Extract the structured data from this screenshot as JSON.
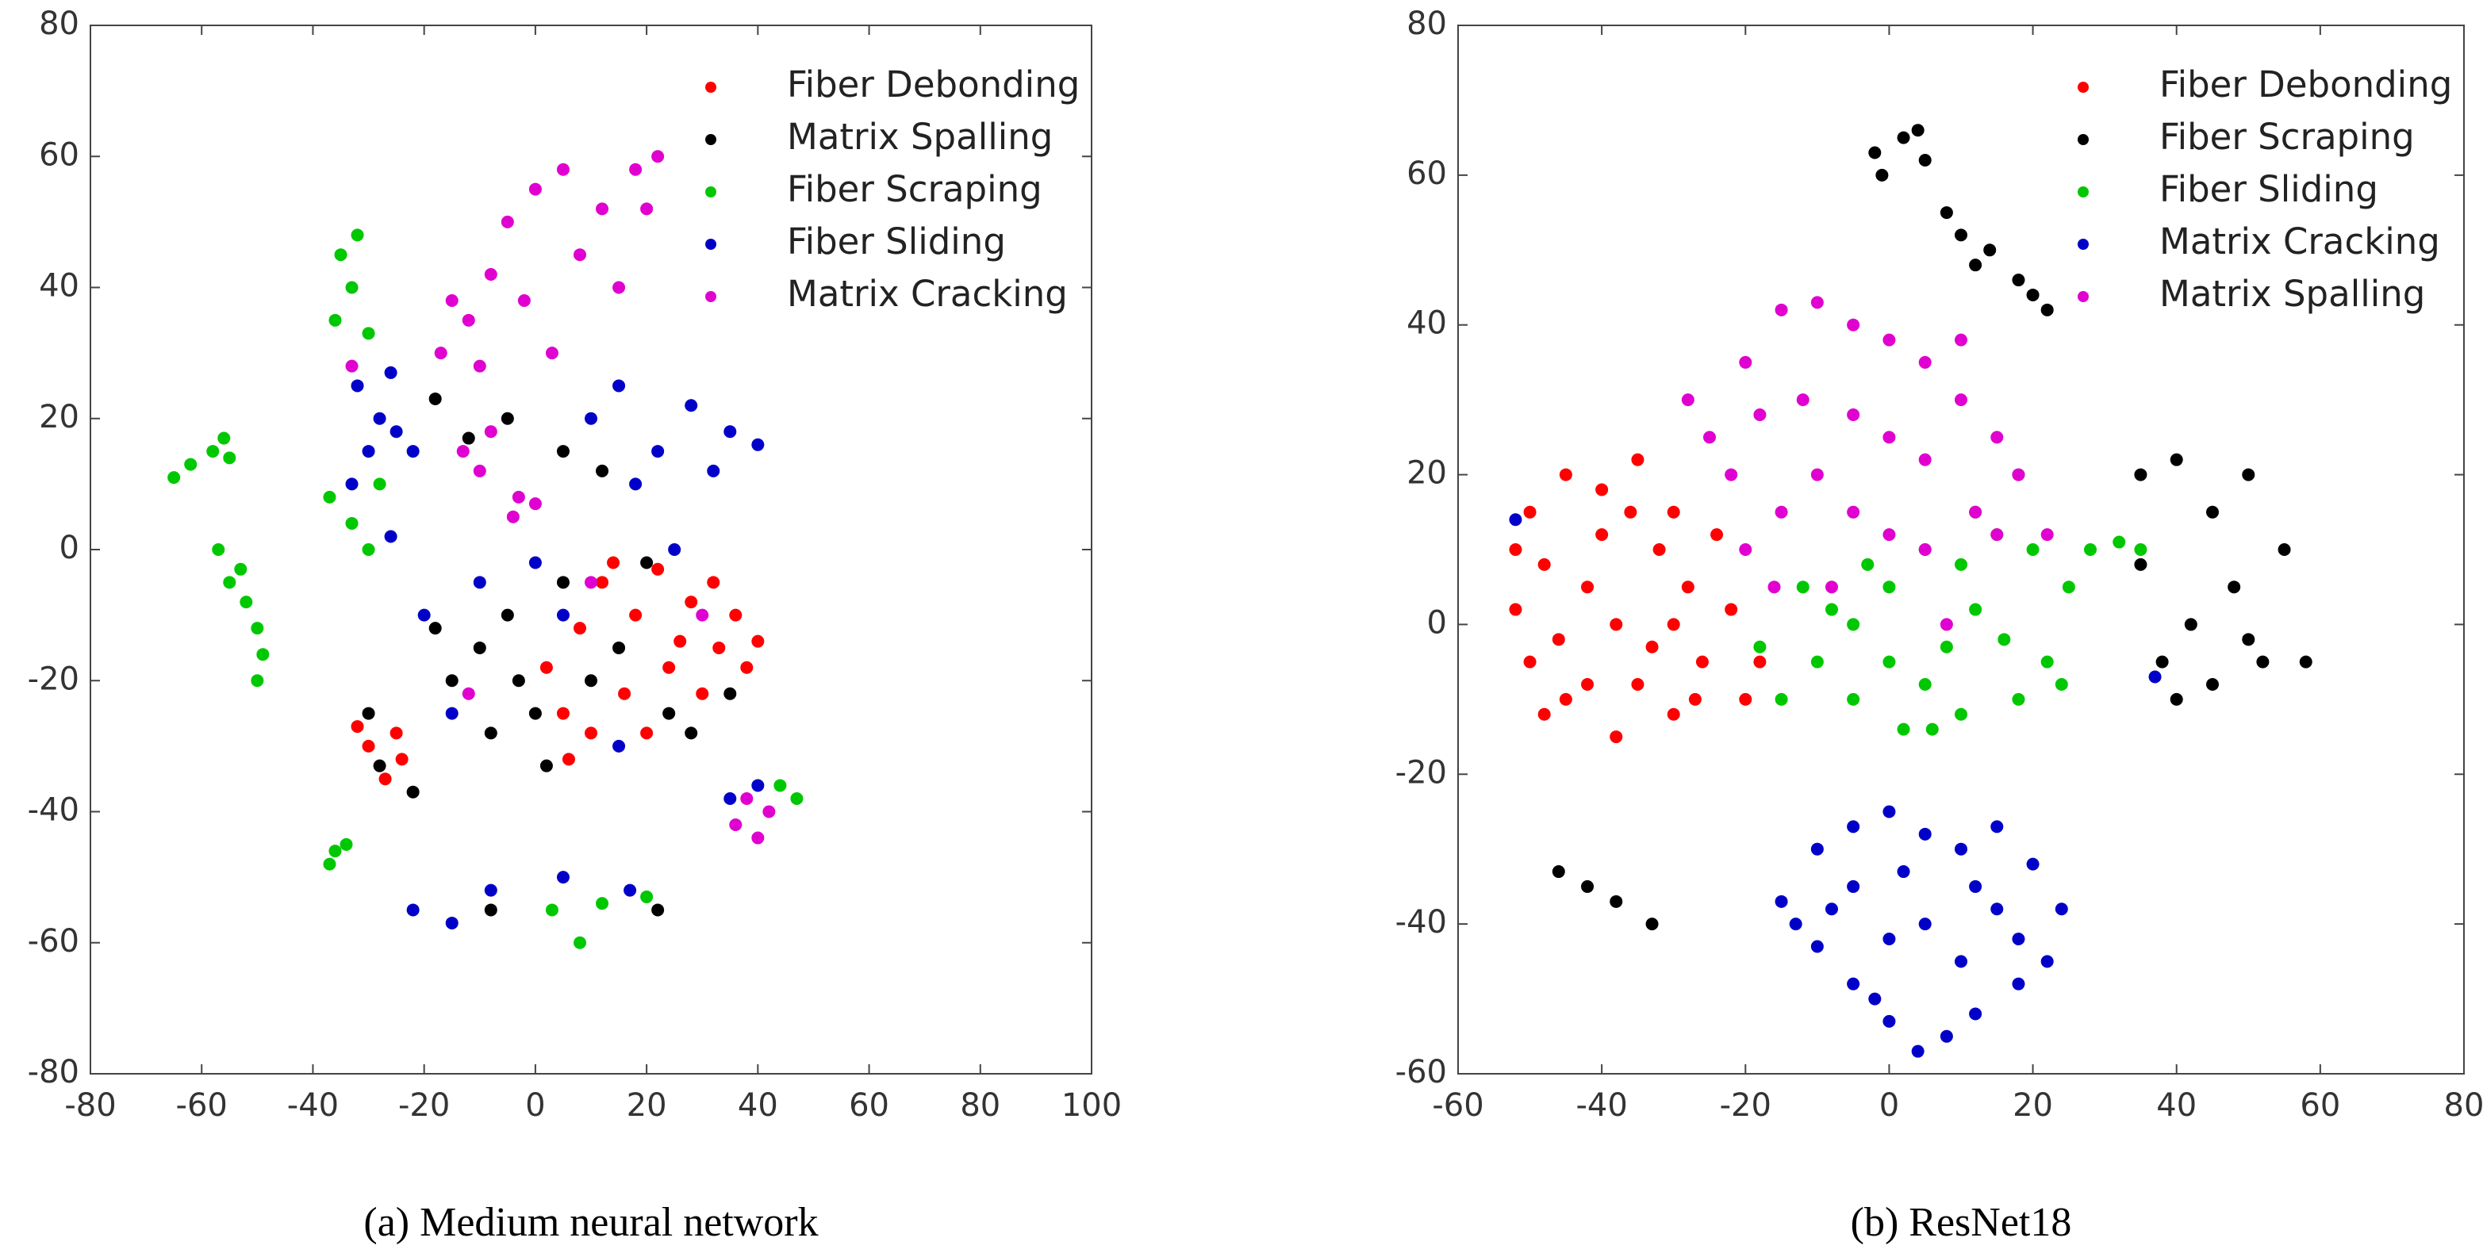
{
  "chart_data": [
    {
      "type": "scatter",
      "caption": "(a) Medium neural network",
      "legend": "upper right",
      "xlim": [
        -80,
        100
      ],
      "ylim": [
        -80,
        80
      ],
      "xticks": [
        -80,
        -60,
        -40,
        -20,
        0,
        20,
        40,
        60,
        80,
        100
      ],
      "yticks": [
        -80,
        -60,
        -40,
        -20,
        0,
        20,
        40,
        60,
        80
      ],
      "series": [
        {
          "name": "Fiber Debonding",
          "color": "#ff0000",
          "x": [
            12,
            18,
            22,
            28,
            33,
            38,
            36,
            30,
            24,
            16,
            10,
            5,
            2,
            8,
            20,
            26,
            32,
            40,
            14,
            6,
            -30,
            -27,
            -24,
            -32,
            -25
          ],
          "values": [
            -5,
            -10,
            -3,
            -8,
            -15,
            -18,
            -10,
            -22,
            -18,
            -22,
            -28,
            -25,
            -18,
            -12,
            -28,
            -14,
            -5,
            -14,
            -2,
            -32,
            -30,
            -35,
            -32,
            -27,
            -28
          ]
        },
        {
          "name": "Matrix Spalling",
          "color": "#000000",
          "x": [
            -10,
            -15,
            -5,
            0,
            5,
            -8,
            2,
            15,
            24,
            20,
            28,
            35,
            -18,
            -3,
            10,
            -12,
            -5,
            5,
            -18,
            12,
            -28,
            -22,
            -30,
            -8,
            22
          ],
          "values": [
            -15,
            -20,
            -10,
            -25,
            -5,
            -28,
            -33,
            -15,
            -25,
            -2,
            -28,
            -22,
            -12,
            -20,
            -20,
            17,
            20,
            15,
            23,
            12,
            -33,
            -37,
            -25,
            -55,
            -55
          ]
        },
        {
          "name": "Fiber Scraping",
          "color": "#00c800",
          "x": [
            -65,
            -62,
            -58,
            -56,
            -55,
            -57,
            -55,
            -52,
            -50,
            -49,
            -50,
            -53,
            -35,
            -33,
            -32,
            -36,
            -30,
            -37,
            -33,
            -30,
            -28,
            -37,
            -34,
            -36,
            3,
            8,
            12,
            20,
            44,
            47
          ],
          "values": [
            11,
            13,
            15,
            17,
            14,
            0,
            -5,
            -8,
            -12,
            -16,
            -20,
            -3,
            45,
            40,
            48,
            35,
            33,
            8,
            4,
            0,
            10,
            -48,
            -45,
            -46,
            -55,
            -60,
            -54,
            -53,
            -36,
            -38
          ]
        },
        {
          "name": "Fiber Sliding",
          "color": "#0000c8",
          "x": [
            -32,
            -28,
            -25,
            -22,
            -30,
            -26,
            10,
            15,
            22,
            28,
            35,
            40,
            32,
            18,
            -20,
            -10,
            0,
            5,
            -15,
            15,
            25,
            -22,
            -15,
            -8,
            5,
            17,
            35,
            40,
            -33,
            -26
          ],
          "values": [
            25,
            20,
            18,
            15,
            15,
            27,
            20,
            25,
            15,
            22,
            18,
            16,
            12,
            10,
            -10,
            -5,
            -2,
            -10,
            -25,
            -30,
            0,
            -55,
            -57,
            -52,
            -50,
            -52,
            -38,
            -36,
            10,
            2
          ]
        },
        {
          "name": "Matrix Cracking",
          "color": "#e000d0",
          "x": [
            -17,
            -12,
            -8,
            -5,
            0,
            5,
            12,
            18,
            22,
            20,
            8,
            -2,
            -10,
            3,
            15,
            -15,
            -13,
            -10,
            -8,
            -3,
            0,
            -4,
            38,
            40,
            42,
            36,
            -12,
            10,
            30,
            -33
          ],
          "values": [
            30,
            35,
            42,
            50,
            55,
            58,
            52,
            58,
            60,
            52,
            45,
            38,
            28,
            30,
            40,
            38,
            15,
            12,
            18,
            8,
            7,
            5,
            -38,
            -44,
            -40,
            -42,
            -22,
            -5,
            -10,
            28
          ]
        }
      ]
    },
    {
      "type": "scatter",
      "caption": "(b) ResNet18",
      "legend": "upper right",
      "xlim": [
        -60,
        80
      ],
      "ylim": [
        -60,
        80
      ],
      "xticks": [
        -60,
        -40,
        -20,
        0,
        20,
        40,
        60,
        80
      ],
      "yticks": [
        -60,
        -40,
        -20,
        0,
        20,
        40,
        60,
        80
      ],
      "series": [
        {
          "name": "Fiber Debonding",
          "color": "#ff0000",
          "x": [
            -50,
            -45,
            -40,
            -35,
            -30,
            -28,
            -26,
            -30,
            -38,
            -45,
            -50,
            -52,
            -48,
            -42,
            -38,
            -35,
            -32,
            -40,
            -46,
            -36,
            -30,
            -42,
            -33,
            -27,
            -20,
            -18,
            -22,
            -24,
            -48,
            -52
          ],
          "values": [
            15,
            20,
            18,
            22,
            15,
            5,
            -5,
            -12,
            -15,
            -10,
            -5,
            2,
            8,
            5,
            0,
            -8,
            10,
            12,
            -2,
            15,
            0,
            -8,
            -3,
            -10,
            -10,
            -5,
            2,
            12,
            -12,
            10
          ]
        },
        {
          "name": "Fiber Scraping",
          "color": "#000000",
          "x": [
            -2,
            2,
            5,
            -1,
            4,
            8,
            10,
            14,
            18,
            22,
            12,
            20,
            35,
            40,
            45,
            50,
            55,
            48,
            42,
            38,
            45,
            52,
            58,
            35,
            40,
            50,
            -46,
            -42,
            -38,
            -33
          ],
          "values": [
            63,
            65,
            62,
            60,
            66,
            55,
            52,
            50,
            46,
            42,
            48,
            44,
            20,
            22,
            15,
            20,
            10,
            5,
            0,
            -5,
            -8,
            -5,
            -5,
            8,
            -10,
            -2,
            -33,
            -35,
            -37,
            -40
          ]
        },
        {
          "name": "Fiber Sliding",
          "color": "#00c800",
          "x": [
            -10,
            -5,
            0,
            5,
            10,
            15,
            20,
            25,
            22,
            18,
            10,
            2,
            -5,
            -8,
            0,
            8,
            12,
            16,
            5,
            -3,
            -15,
            -18,
            28,
            32,
            35,
            18,
            12,
            24,
            6,
            -12
          ],
          "values": [
            -5,
            0,
            5,
            10,
            8,
            12,
            10,
            5,
            -5,
            -10,
            -12,
            -14,
            -10,
            2,
            -5,
            -3,
            2,
            -2,
            -8,
            8,
            -10,
            -3,
            10,
            11,
            10,
            20,
            15,
            -8,
            -14,
            5
          ]
        },
        {
          "name": "Matrix Cracking",
          "color": "#0000c8",
          "x": [
            -15,
            -10,
            -5,
            0,
            5,
            10,
            15,
            20,
            24,
            22,
            18,
            12,
            8,
            4,
            0,
            -5,
            -10,
            -13,
            -5,
            5,
            10,
            15,
            0,
            -8,
            18,
            2,
            12,
            -2,
            -52,
            37
          ],
          "values": [
            -37,
            -30,
            -27,
            -25,
            -28,
            -30,
            -27,
            -32,
            -38,
            -45,
            -48,
            -52,
            -55,
            -57,
            -53,
            -48,
            -43,
            -40,
            -35,
            -40,
            -45,
            -38,
            -42,
            -38,
            -42,
            -33,
            -35,
            -50,
            14,
            -7
          ]
        },
        {
          "name": "Matrix Spalling",
          "color": "#e000d0",
          "x": [
            -28,
            -25,
            -20,
            -15,
            -10,
            -5,
            0,
            5,
            10,
            15,
            18,
            12,
            5,
            0,
            -5,
            -10,
            -15,
            -20,
            -22,
            -12,
            -5,
            5,
            10,
            -18,
            0,
            15,
            -8,
            -16,
            22,
            8
          ],
          "values": [
            30,
            25,
            35,
            42,
            43,
            40,
            38,
            35,
            30,
            25,
            20,
            15,
            10,
            12,
            15,
            20,
            15,
            10,
            20,
            30,
            28,
            22,
            38,
            28,
            25,
            12,
            5,
            5,
            12,
            0
          ]
        }
      ]
    }
  ]
}
